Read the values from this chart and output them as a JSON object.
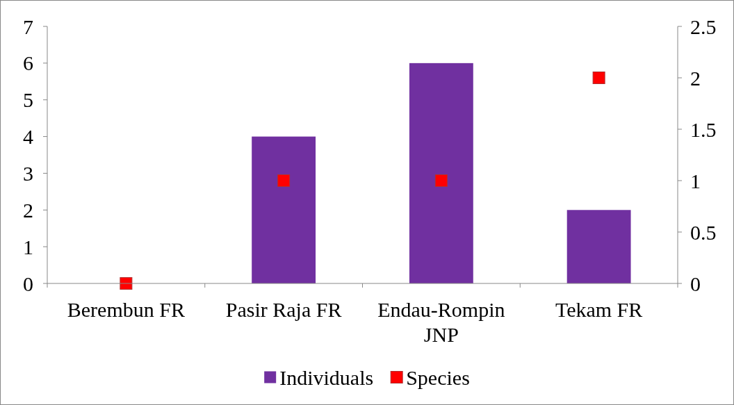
{
  "chart_data": {
    "type": "bar",
    "categories": [
      "Berembun FR",
      "Pasir Raja FR",
      "Endau-Rompin JNP",
      "Tekam FR"
    ],
    "series": [
      {
        "name": "Individuals",
        "color": "#7030a0",
        "values": [
          0,
          4,
          6,
          2
        ]
      },
      {
        "name": "Species",
        "type": "scatter",
        "axis": "y2",
        "color": "#ff0000",
        "values": [
          0,
          1,
          1,
          2
        ]
      }
    ],
    "ylim": [
      0,
      7
    ],
    "yticks": [
      0,
      1,
      2,
      3,
      4,
      5,
      6,
      7
    ],
    "y2lim": [
      0,
      2.5
    ],
    "y2ticks": [
      0,
      0.5,
      1,
      1.5,
      2,
      2.5
    ],
    "marker": "square",
    "grid": false,
    "legend": "bottom"
  }
}
